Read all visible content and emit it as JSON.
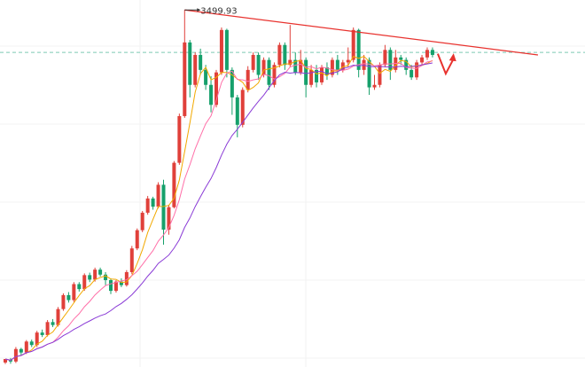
{
  "chart_data": {
    "type": "candlestick",
    "title": "",
    "xlabel": "",
    "ylabel": "",
    "grid": true,
    "ylim": [
      2070,
      3540
    ],
    "reference_level": 3330,
    "peak": {
      "index": 34,
      "value": 3499.93,
      "label": "3499.93"
    },
    "trendline": {
      "from": {
        "index": 34,
        "value": 3499.93
      },
      "to": {
        "index": 101,
        "value": 3320
      }
    },
    "projection": {
      "from_index": 82,
      "to_index": 85,
      "values": [
        3325,
        3245,
        3305
      ]
    },
    "moving_averages": [
      {
        "period": 5,
        "color": "#f2a900"
      },
      {
        "period": 10,
        "color": "#ff6fa8"
      },
      {
        "period": 20,
        "color": "#8a3bd6"
      }
    ],
    "candles": [
      [
        2088,
        2102,
        2082,
        2098
      ],
      [
        2098,
        2092,
        2083,
        2106
      ],
      [
        2092,
        2142,
        2086,
        2150
      ],
      [
        2142,
        2128,
        2118,
        2147
      ],
      [
        2128,
        2172,
        2122,
        2178
      ],
      [
        2172,
        2158,
        2150,
        2180
      ],
      [
        2158,
        2208,
        2150,
        2215
      ],
      [
        2208,
        2198,
        2190,
        2220
      ],
      [
        2198,
        2250,
        2192,
        2258
      ],
      [
        2250,
        2238,
        2230,
        2262
      ],
      [
        2238,
        2302,
        2232,
        2310
      ],
      [
        2302,
        2358,
        2295,
        2365
      ],
      [
        2358,
        2338,
        2328,
        2370
      ],
      [
        2338,
        2402,
        2330,
        2410
      ],
      [
        2402,
        2382,
        2372,
        2410
      ],
      [
        2382,
        2438,
        2375,
        2445
      ],
      [
        2438,
        2420,
        2410,
        2448
      ],
      [
        2420,
        2460,
        2412,
        2468
      ],
      [
        2460,
        2440,
        2432,
        2468
      ],
      [
        2440,
        2418,
        2398,
        2450
      ],
      [
        2418,
        2375,
        2362,
        2425
      ],
      [
        2375,
        2412,
        2368,
        2418
      ],
      [
        2412,
        2398,
        2390,
        2425
      ],
      [
        2398,
        2450,
        2392,
        2458
      ],
      [
        2450,
        2545,
        2442,
        2555
      ],
      [
        2545,
        2618,
        2538,
        2625
      ],
      [
        2618,
        2688,
        2610,
        2695
      ],
      [
        2688,
        2745,
        2680,
        2755
      ],
      [
        2745,
        2712,
        2700,
        2752
      ],
      [
        2712,
        2800,
        2705,
        2810
      ],
      [
        2800,
        2620,
        2560,
        2820
      ],
      [
        2620,
        2710,
        2600,
        2720
      ],
      [
        2710,
        2888,
        2705,
        2895
      ],
      [
        2888,
        3075,
        2880,
        3085
      ],
      [
        3075,
        3370,
        3068,
        3500
      ],
      [
        3370,
        3200,
        3150,
        3380
      ],
      [
        3200,
        3320,
        3190,
        3330
      ],
      [
        3320,
        3260,
        3240,
        3345
      ],
      [
        3260,
        3200,
        3180,
        3280
      ],
      [
        3200,
        3120,
        3090,
        3235
      ],
      [
        3120,
        3250,
        3110,
        3260
      ],
      [
        3250,
        3420,
        3240,
        3430
      ],
      [
        3420,
        3260,
        3230,
        3425
      ],
      [
        3260,
        3150,
        3080,
        3270
      ],
      [
        3150,
        3040,
        2990,
        3160
      ],
      [
        3040,
        3180,
        3030,
        3190
      ],
      [
        3180,
        3260,
        3170,
        3275
      ],
      [
        3260,
        3320,
        3250,
        3330
      ],
      [
        3320,
        3240,
        3220,
        3330
      ],
      [
        3240,
        3300,
        3230,
        3310
      ],
      [
        3300,
        3200,
        3180,
        3310
      ],
      [
        3200,
        3280,
        3190,
        3290
      ],
      [
        3280,
        3360,
        3270,
        3370
      ],
      [
        3360,
        3280,
        3260,
        3370
      ],
      [
        3280,
        3300,
        3270,
        3440
      ],
      [
        3300,
        3250,
        3240,
        3330
      ],
      [
        3250,
        3300,
        3240,
        3340
      ],
      [
        3300,
        3200,
        3150,
        3310
      ],
      [
        3200,
        3260,
        3190,
        3280
      ],
      [
        3260,
        3210,
        3190,
        3280
      ],
      [
        3210,
        3270,
        3200,
        3280
      ],
      [
        3270,
        3240,
        3220,
        3290
      ],
      [
        3240,
        3300,
        3230,
        3310
      ],
      [
        3300,
        3260,
        3240,
        3320
      ],
      [
        3260,
        3290,
        3250,
        3300
      ],
      [
        3290,
        3300,
        3270,
        3350
      ],
      [
        3300,
        3420,
        3290,
        3430
      ],
      [
        3420,
        3260,
        3230,
        3425
      ],
      [
        3260,
        3300,
        3240,
        3320
      ],
      [
        3300,
        3190,
        3160,
        3310
      ],
      [
        3190,
        3200,
        3180,
        3240
      ],
      [
        3200,
        3280,
        3190,
        3290
      ],
      [
        3280,
        3340,
        3270,
        3360
      ],
      [
        3340,
        3260,
        3220,
        3350
      ],
      [
        3260,
        3310,
        3250,
        3340
      ],
      [
        3310,
        3300,
        3280,
        3320
      ],
      [
        3300,
        3260,
        3240,
        3310
      ],
      [
        3260,
        3230,
        3220,
        3280
      ],
      [
        3230,
        3290,
        3220,
        3300
      ],
      [
        3290,
        3310,
        3280,
        3320
      ],
      [
        3310,
        3340,
        3300,
        3350
      ],
      [
        3340,
        3320,
        3310,
        3350
      ]
    ]
  }
}
